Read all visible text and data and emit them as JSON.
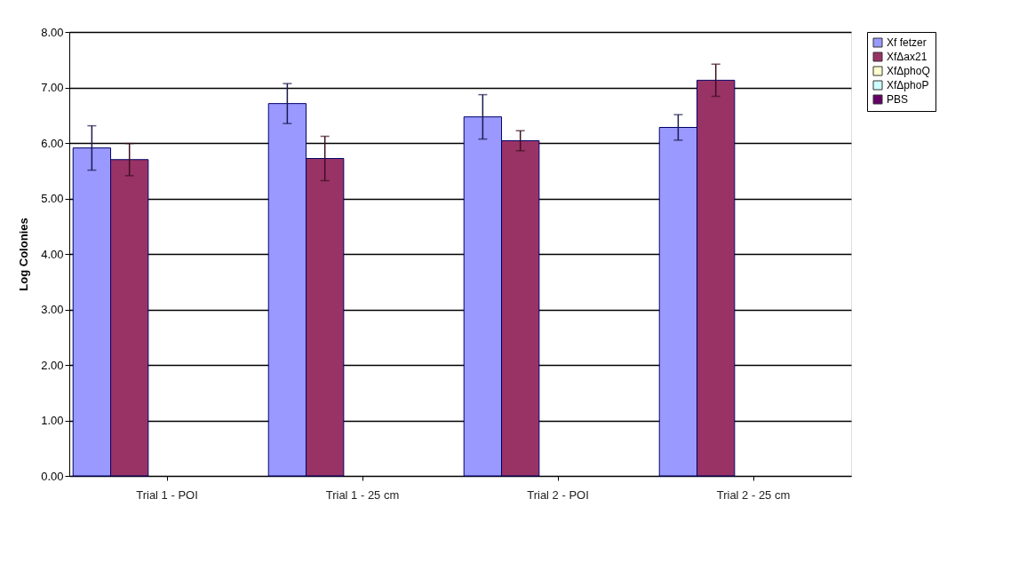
{
  "chart_data": {
    "type": "bar",
    "ylabel": "Log Colonies",
    "categories": [
      "Trial 1 - POI",
      "Trial 1 - 25 cm",
      "Trial 2 - POI",
      "Trial 2 - 25 cm"
    ],
    "series": [
      {
        "name": "Xf fetzer",
        "color": "#9999ff",
        "values": [
          5.91,
          6.71,
          6.47,
          6.28
        ],
        "errors": [
          0.4,
          0.36,
          0.4,
          0.23
        ]
      },
      {
        "name": "XfΔax21",
        "color": "#993366",
        "values": [
          5.7,
          5.72,
          6.04,
          7.13
        ],
        "errors": [
          0.29,
          0.4,
          0.18,
          0.29
        ]
      },
      {
        "name": "XfΔphoQ",
        "color": "#ffffcc",
        "values": [
          null,
          null,
          null,
          null
        ]
      },
      {
        "name": "XfΔphoP",
        "color": "#ccffff",
        "values": [
          null,
          null,
          null,
          null
        ]
      },
      {
        "name": "PBS",
        "color": "#660066",
        "values": [
          null,
          null,
          null,
          null
        ]
      }
    ],
    "ylim": [
      0,
      8
    ],
    "yticks": [
      {
        "value": 0,
        "label": "0.00"
      },
      {
        "value": 1,
        "label": "1.00"
      },
      {
        "value": 2,
        "label": "2.00"
      },
      {
        "value": 3,
        "label": "3.00"
      },
      {
        "value": 4,
        "label": "4.00"
      },
      {
        "value": 5,
        "label": "5.00"
      },
      {
        "value": 6,
        "label": "6.00"
      },
      {
        "value": 7,
        "label": "7.00"
      },
      {
        "value": 8,
        "label": "8.00"
      }
    ],
    "grid": "y",
    "legend": "right"
  }
}
